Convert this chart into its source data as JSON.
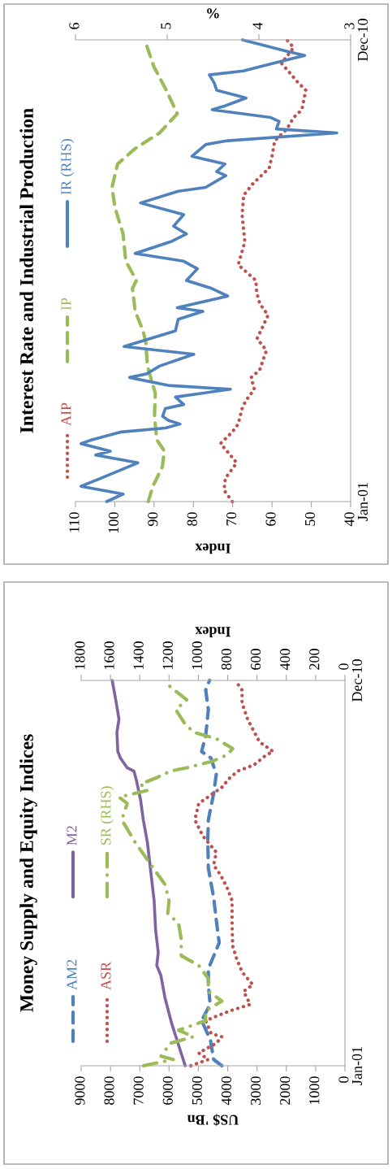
{
  "chart_data": [
    {
      "type": "line",
      "orientation": "horizontal",
      "title": "Interest Rate and Industrial Production",
      "xlabel": "Index",
      "x2label": "%",
      "legend": "left",
      "ylim": [
        "2001-01",
        "2010-12"
      ],
      "yticks": [
        {
          "value": "2001-01",
          "label": "Jan-01"
        },
        {
          "value": "2010-12",
          "label": "Dec-10"
        }
      ],
      "xlim": [
        110,
        40
      ],
      "xticks": [
        40,
        50,
        60,
        70,
        80,
        90,
        100,
        110
      ],
      "x2lim": [
        6,
        3
      ],
      "x2ticks": [
        3,
        4,
        5,
        6
      ],
      "series": [
        {
          "name": "AIP",
          "color": "#c0504d",
          "line_style": "dotted",
          "x": [
            "2001-01",
            "2001-04",
            "2001-07",
            "2001-11",
            "2002-01",
            "2002-04",
            "2002-07",
            "2002-09",
            "2003-01",
            "2003-03",
            "2003-06",
            "2003-09",
            "2003-11",
            "2004-02",
            "2004-04",
            "2004-07",
            "2005-01",
            "2005-04",
            "2005-07",
            "2005-10",
            "2006-02",
            "2006-08",
            "2007-03",
            "2007-08",
            "2007-11",
            "2008-03",
            "2008-06",
            "2008-10",
            "2009-01",
            "2009-04",
            "2009-06",
            "2009-11",
            "2010-01",
            "2010-04",
            "2010-06",
            "2010-10",
            "2010-12"
          ],
          "values": [
            70.1,
            72.2,
            71.9,
            69.0,
            70.6,
            73.1,
            70.1,
            68.6,
            67.6,
            66.7,
            64.5,
            65.3,
            63.1,
            62.1,
            61.4,
            63.8,
            61.0,
            63.1,
            63.9,
            64.1,
            68.6,
            66.9,
            67.6,
            67.2,
            64.8,
            60.7,
            60.0,
            59.3,
            56.2,
            54.5,
            52.4,
            51.4,
            53.4,
            55.9,
            57.6,
            54.5,
            56.2
          ]
        },
        {
          "name": "IP",
          "color": "#9bbb59",
          "line_style": "dashed",
          "x": [
            "2001-01",
            "2001-05",
            "2001-10",
            "2002-02",
            "2002-05",
            "2002-11",
            "2003-05",
            "2003-12",
            "2004-06",
            "2004-09",
            "2005-02",
            "2005-08",
            "2005-10",
            "2006-03",
            "2006-10",
            "2007-05",
            "2007-10",
            "2008-04",
            "2008-08",
            "2008-12",
            "2009-05",
            "2009-11",
            "2010-05",
            "2010-12"
          ],
          "values": [
            91.5,
            90.3,
            87.9,
            87.4,
            89.3,
            89.9,
            89.7,
            91.7,
            92.1,
            92.8,
            94.8,
            95.5,
            94.5,
            97.2,
            97.9,
            100.0,
            100.7,
            99.3,
            94.8,
            88.6,
            84.1,
            86.9,
            90.0,
            92.4
          ]
        },
        {
          "name": "IR (RHS)",
          "color": "#4f81bd",
          "line_style": "solid",
          "axis": "x2",
          "x": [
            "2001-01",
            "2001-03",
            "2001-05",
            "2001-07",
            "2001-11",
            "2002-01",
            "2002-02",
            "2002-04",
            "2002-05",
            "2002-07",
            "2002-08",
            "2002-09",
            "2002-10",
            "2002-11",
            "2003-01",
            "2003-02",
            "2003-04",
            "2003-06",
            "2003-07",
            "2003-09",
            "2003-10",
            "2003-12",
            "2004-03",
            "2004-05",
            "2004-09",
            "2004-12",
            "2005-02",
            "2005-03",
            "2005-06",
            "2005-08",
            "2005-10",
            "2006-01",
            "2006-03",
            "2006-05",
            "2006-08",
            "2006-10",
            "2006-12",
            "2007-03",
            "2007-06",
            "2007-09",
            "2007-10",
            "2008-01",
            "2008-02",
            "2008-04",
            "2008-06",
            "2008-09",
            "2008-10",
            "2008-12",
            "2009-01",
            "2009-03",
            "2009-04",
            "2009-06",
            "2009-07",
            "2009-09",
            "2009-11",
            "2010-01",
            "2010-03",
            "2010-04",
            "2010-06",
            "2010-08",
            "2010-09",
            "2010-12"
          ],
          "values": [
            5.66,
            5.48,
            5.94,
            5.73,
            5.32,
            5.78,
            5.62,
            5.94,
            5.82,
            5.5,
            5.02,
            4.86,
            4.99,
            5.05,
            5.02,
            4.82,
            4.91,
            4.31,
            4.99,
            5.41,
            5.22,
            5.08,
            4.71,
            5.47,
            4.91,
            4.88,
            4.61,
            4.89,
            4.34,
            4.52,
            4.79,
            4.67,
            4.82,
            5.35,
            4.96,
            4.79,
            4.93,
            4.82,
            5.29,
            4.88,
            4.58,
            4.36,
            4.46,
            4.37,
            4.73,
            4.58,
            4.34,
            3.15,
            3.81,
            3.78,
            3.87,
            4.51,
            4.37,
            4.14,
            4.46,
            4.49,
            4.54,
            4.17,
            3.84,
            3.5,
            3.69,
            4.18
          ]
        }
      ]
    },
    {
      "type": "line",
      "orientation": "horizontal",
      "title": "Money Supply and Equity Indices",
      "xlabel": "US$ 'Bn",
      "x2label": "Index",
      "legend": "left",
      "ylim": [
        "2001-01",
        "2010-12"
      ],
      "yticks": [
        {
          "value": "2001-01",
          "label": "Jan-01"
        },
        {
          "value": "2010-12",
          "label": "Dec-10"
        }
      ],
      "xlim": [
        9000,
        0
      ],
      "xticks": [
        0,
        1000,
        2000,
        3000,
        4000,
        5000,
        6000,
        7000,
        8000,
        9000
      ],
      "x2lim": [
        1800,
        0
      ],
      "x2ticks": [
        0,
        200,
        400,
        600,
        800,
        1000,
        1200,
        1400,
        1600,
        1800
      ],
      "series": [
        {
          "name": "AM2",
          "color": "#4f81bd",
          "line_style": "dashed",
          "x": [
            "2001-01",
            "2001-03",
            "2001-09",
            "2002-03",
            "2002-08",
            "2003-02",
            "2003-07",
            "2004-03",
            "2004-10",
            "2005-05",
            "2006-02",
            "2006-11",
            "2007-05",
            "2008-01",
            "2008-07",
            "2008-12",
            "2009-02",
            "2009-07",
            "2010-03",
            "2010-09",
            "2010-12"
          ],
          "values": [
            4200,
            4480,
            4590,
            4890,
            4600,
            4660,
            4660,
            4290,
            4390,
            4480,
            4660,
            4680,
            4660,
            4480,
            4390,
            4570,
            4890,
            4750,
            4660,
            4750,
            4620
          ]
        },
        {
          "name": "M2",
          "color": "#8064a2",
          "line_style": "solid",
          "x": [
            "2001-01",
            "2001-05",
            "2002-02",
            "2002-10",
            "2003-05",
            "2003-08",
            "2003-12",
            "2004-07",
            "2005-04",
            "2005-11",
            "2006-10",
            "2007-05",
            "2007-11",
            "2008-05",
            "2008-08",
            "2008-09",
            "2008-12",
            "2009-02",
            "2009-08",
            "2009-12",
            "2010-05",
            "2010-12"
          ],
          "values": [
            5450,
            5590,
            5910,
            6140,
            6280,
            6420,
            6370,
            6460,
            6510,
            6600,
            6740,
            6880,
            6970,
            7110,
            7200,
            7430,
            7660,
            7750,
            7780,
            7710,
            7800,
            7940
          ]
        },
        {
          "name": "ASR",
          "color": "#c0504d",
          "line_style": "dotted",
          "x": [
            "2001-01",
            "2001-03",
            "2001-05",
            "2001-08",
            "2001-10",
            "2001-11",
            "2002-03",
            "2002-04",
            "2002-06",
            "2002-08",
            "2002-12",
            "2003-02",
            "2003-06",
            "2003-10",
            "2004-02",
            "2004-09",
            "2005-04",
            "2005-08",
            "2005-12",
            "2006-03",
            "2006-07",
            "2006-12",
            "2007-05",
            "2007-10",
            "2008-03",
            "2008-06",
            "2008-08",
            "2008-10",
            "2009-01",
            "2009-02",
            "2009-05",
            "2009-08",
            "2009-12",
            "2010-05",
            "2010-09",
            "2010-12"
          ],
          "values": [
            5260,
            4660,
            4990,
            4390,
            4200,
            4570,
            4750,
            4480,
            3920,
            3230,
            3460,
            3140,
            3510,
            3690,
            3830,
            3850,
            3850,
            4020,
            4250,
            4480,
            4390,
            4850,
            5120,
            4990,
            4200,
            3920,
            3650,
            3090,
            2680,
            2450,
            2910,
            3090,
            3320,
            3510,
            3510,
            3740
          ]
        },
        {
          "name": "SR (RHS)",
          "color": "#9bbb59",
          "line_style": "dashdot",
          "axis": "x2",
          "x": [
            "2001-01",
            "2001-03",
            "2001-04",
            "2001-08",
            "2001-10",
            "2001-12",
            "2002-03",
            "2002-06",
            "2002-09",
            "2002-12",
            "2003-04",
            "2003-08",
            "2003-11",
            "2004-04",
            "2004-09",
            "2004-12",
            "2005-04",
            "2005-09",
            "2006-01",
            "2006-10",
            "2007-05",
            "2007-10",
            "2007-12",
            "2008-02",
            "2008-04",
            "2008-06",
            "2008-08",
            "2008-09",
            "2008-11",
            "2009-01",
            "2009-03",
            "2009-06",
            "2009-08",
            "2009-11",
            "2010-03",
            "2010-06",
            "2010-08",
            "2010-11"
          ],
          "values": [
            1375,
            1172,
            1255,
            1191,
            1034,
            1135,
            951,
            951,
            840,
            932,
            932,
            997,
            1117,
            1117,
            1135,
            1209,
            1200,
            1228,
            1292,
            1431,
            1523,
            1486,
            1541,
            1348,
            1394,
            1283,
            1191,
            1080,
            905,
            803,
            766,
            877,
            1034,
            1098,
            1154,
            1080,
            1135,
            1218
          ]
        }
      ]
    }
  ]
}
